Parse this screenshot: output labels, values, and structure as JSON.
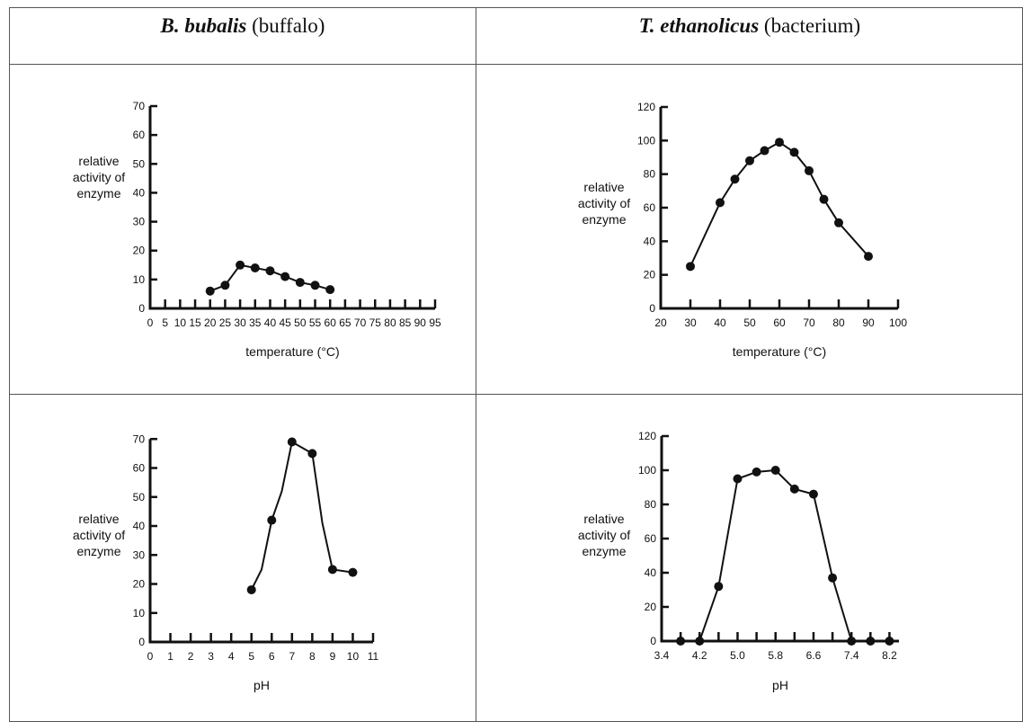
{
  "headers": {
    "left": {
      "species": "B. bubalis",
      "common": "(buffalo)"
    },
    "right": {
      "species": "T. ethanolicus",
      "common": "(bacterium)"
    }
  },
  "chart_data": [
    {
      "id": "buffalo-temp",
      "type": "line",
      "ylabel": [
        "relative",
        "activity of",
        "enzyme"
      ],
      "xlabel": "temperature (°C)",
      "xlim": [
        0,
        95
      ],
      "ylim": [
        0,
        70
      ],
      "xticks": [
        0,
        5,
        10,
        15,
        20,
        25,
        30,
        35,
        40,
        45,
        50,
        55,
        60,
        65,
        70,
        75,
        80,
        85,
        90,
        95
      ],
      "yticks": [
        0,
        10,
        20,
        30,
        40,
        50,
        60,
        70
      ],
      "x": [
        20,
        25,
        30,
        35,
        40,
        45,
        50,
        55,
        60
      ],
      "y": [
        6,
        8,
        15,
        14,
        13,
        11,
        9,
        8,
        6.5
      ]
    },
    {
      "id": "bacterium-temp",
      "type": "line",
      "ylabel": [
        "relative",
        "activity of",
        "enzyme"
      ],
      "xlabel": "temperature (°C)",
      "xlim": [
        20,
        100
      ],
      "ylim": [
        0,
        120
      ],
      "xticks": [
        20,
        30,
        40,
        50,
        60,
        70,
        80,
        90,
        100
      ],
      "yticks": [
        0,
        20,
        40,
        60,
        80,
        100,
        120
      ],
      "x": [
        30,
        40,
        45,
        50,
        55,
        60,
        65,
        70,
        75,
        80,
        90
      ],
      "y": [
        25,
        63,
        77,
        88,
        94,
        99,
        93,
        82,
        65,
        51,
        31
      ]
    },
    {
      "id": "buffalo-ph",
      "type": "line",
      "ylabel": [
        "relative",
        "activity of",
        "enzyme"
      ],
      "xlabel": "pH",
      "xlim": [
        0,
        11
      ],
      "ylim": [
        0,
        80
      ],
      "xticks": [
        0,
        1,
        2,
        3,
        4,
        5,
        6,
        7,
        8,
        9,
        10,
        11
      ],
      "yticks": [
        0,
        10,
        20,
        30,
        40,
        50,
        60,
        70
      ],
      "x": [
        5,
        6,
        7,
        8,
        9,
        10
      ],
      "y": [
        18,
        42,
        69,
        65,
        25,
        24
      ],
      "line_x": [
        5,
        5.5,
        6,
        6.5,
        7,
        8,
        8.5,
        9,
        10
      ],
      "line_y": [
        18,
        25,
        42,
        52,
        69,
        65,
        41,
        25,
        24
      ]
    },
    {
      "id": "bacterium-ph",
      "type": "line",
      "ylabel": [
        "relative",
        "activity of",
        "enzyme"
      ],
      "xlabel": "pH",
      "xlim": [
        3.4,
        8.4
      ],
      "ylim": [
        0,
        120
      ],
      "xticks": [
        3.4,
        4.2,
        5.0,
        5.8,
        6.6,
        7.4,
        8.2
      ],
      "xtick_labels": [
        "3.4",
        "4.2",
        "5.0",
        "5.8",
        "6.6",
        "7.4",
        "8.2"
      ],
      "minor_xticks": [
        3.8,
        4.6,
        5.4,
        6.2,
        7.0,
        7.8
      ],
      "yticks": [
        0,
        20,
        40,
        60,
        80,
        100,
        120
      ],
      "x": [
        3.8,
        4.2,
        4.6,
        5.0,
        5.4,
        5.8,
        6.2,
        6.6,
        7.0,
        7.4,
        7.8,
        8.2
      ],
      "y": [
        0,
        0,
        32,
        95,
        99,
        100,
        89,
        86,
        37,
        0,
        0,
        0
      ]
    }
  ]
}
